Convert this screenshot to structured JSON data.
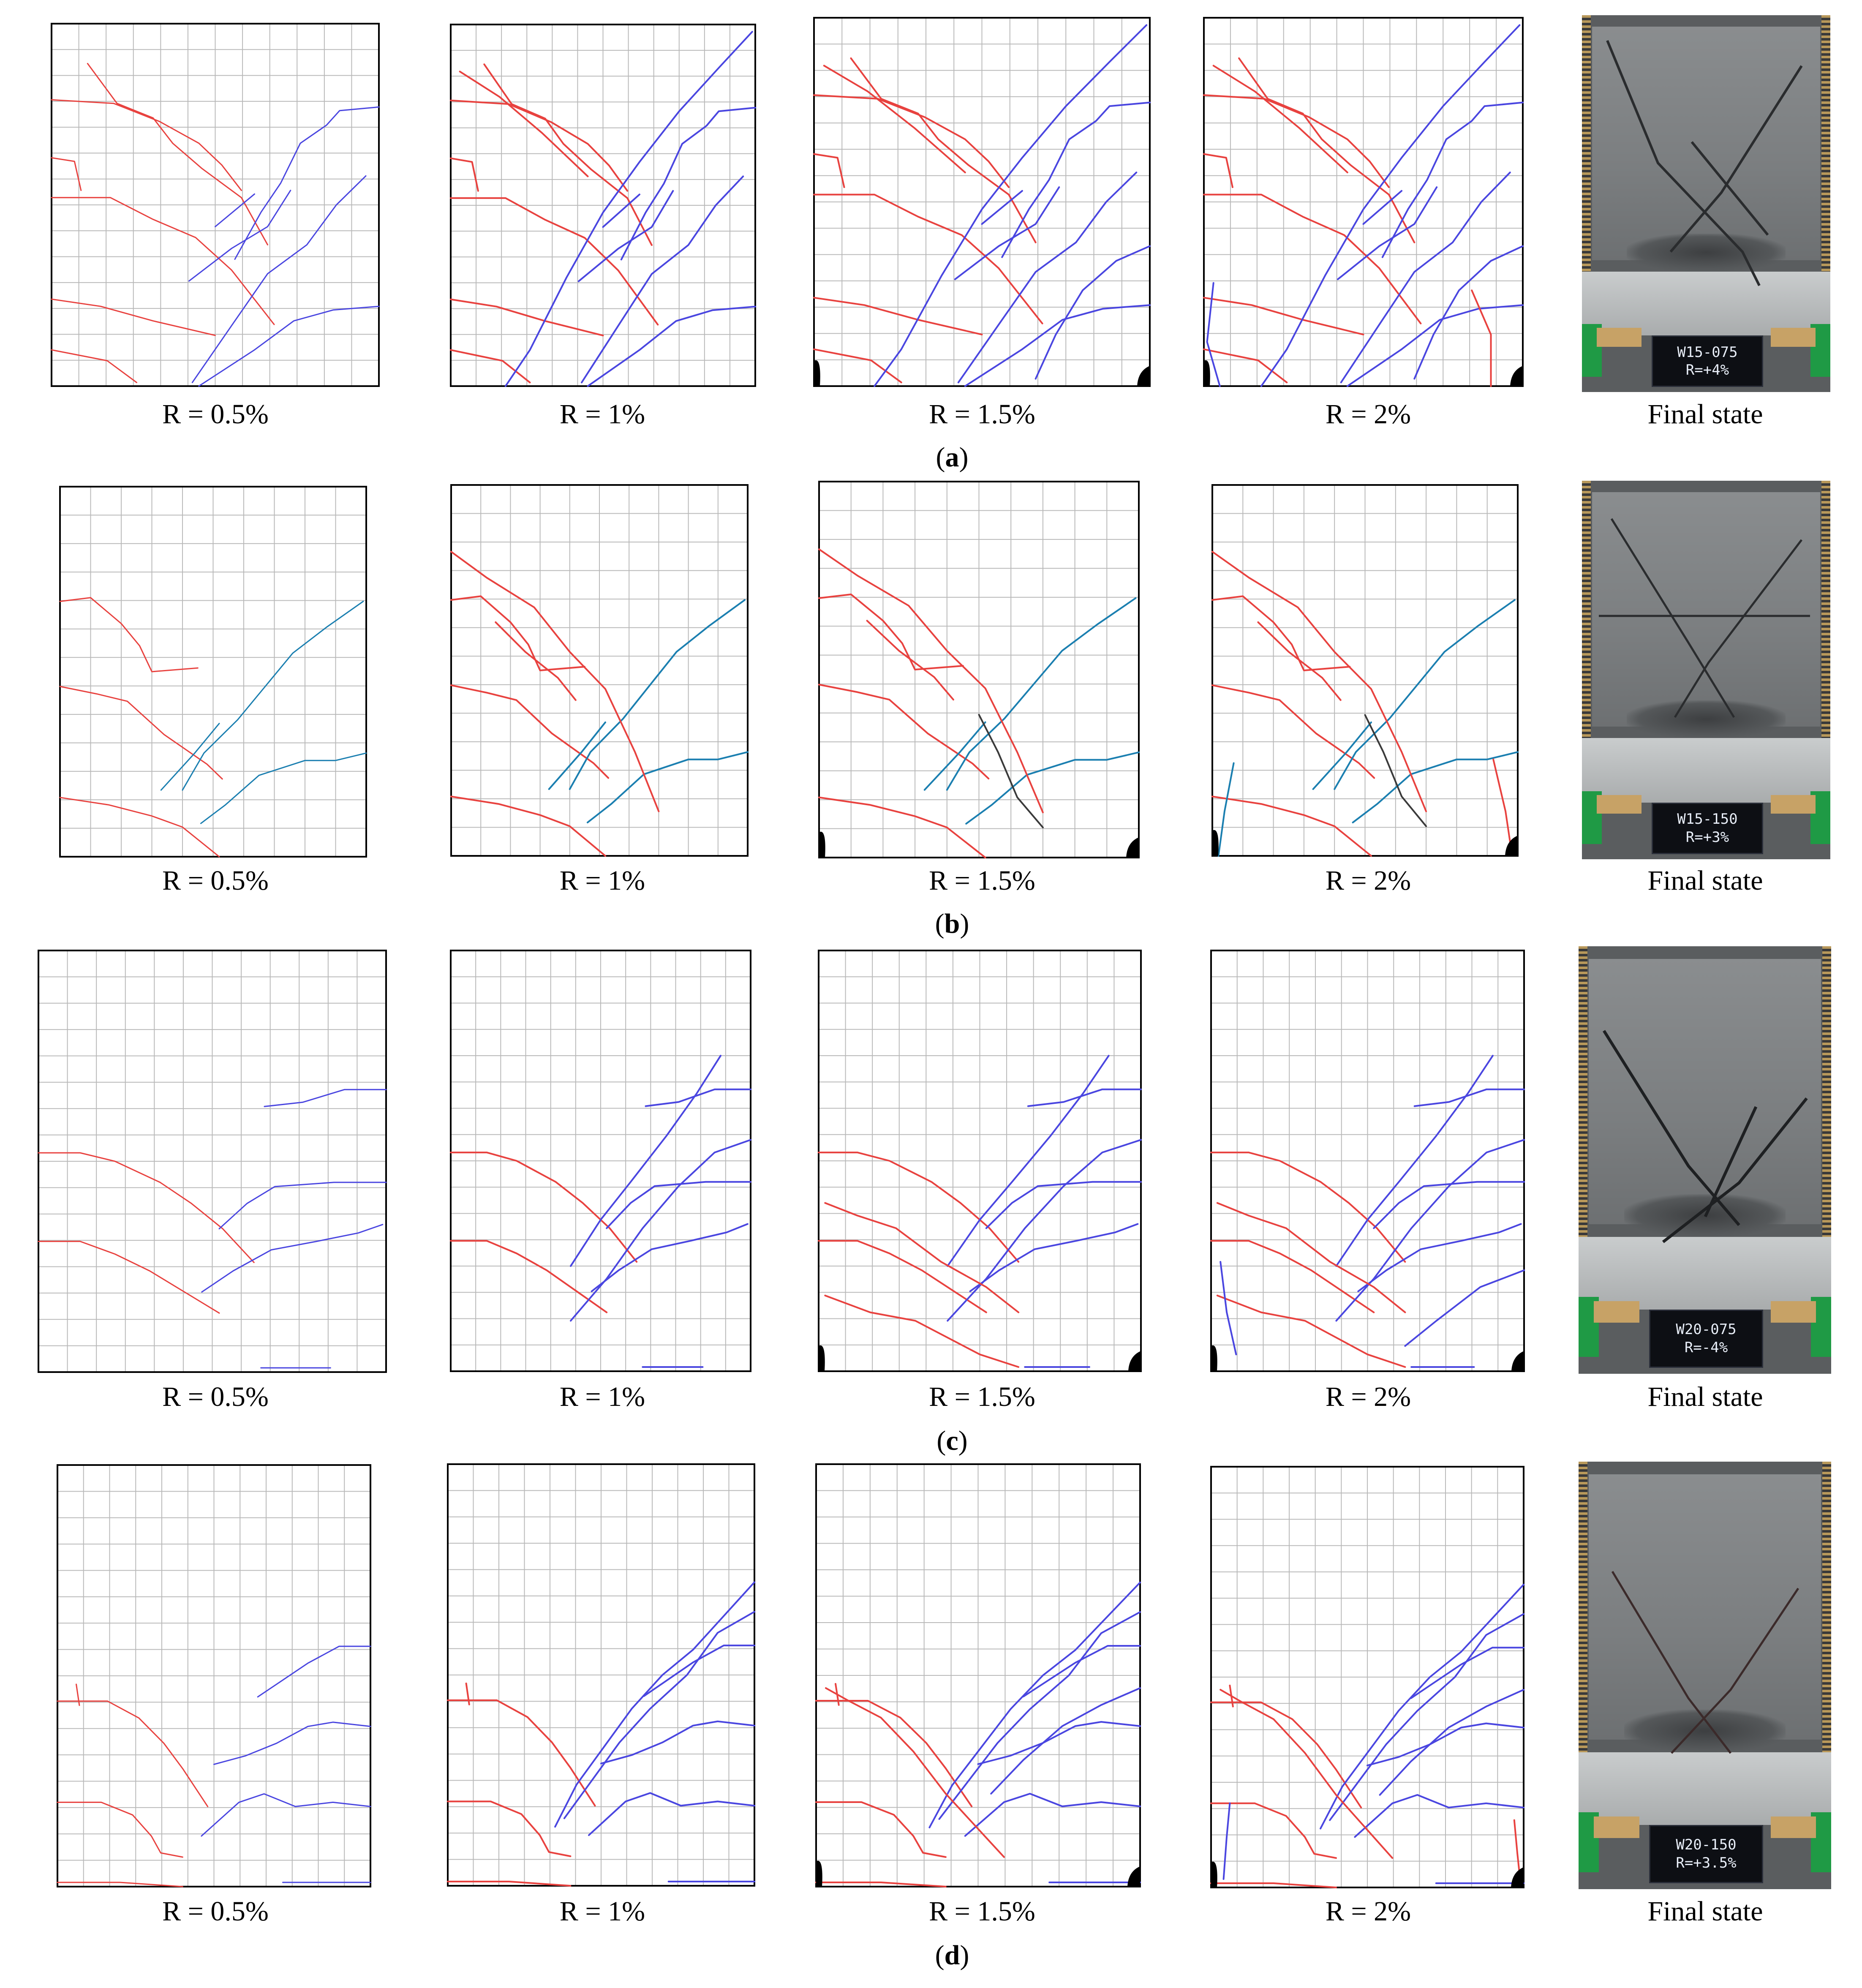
{
  "colors": {
    "grid": "#b9b9b9",
    "frame": "#000000",
    "crack_positive": "#e8423f",
    "crack_negative": "#4a46e0",
    "crack_teal": "#1b7fb0",
    "crack_dark": "#3a3a3a",
    "crush": "#000000"
  },
  "rows": [
    {
      "label_open": "(",
      "label_letter": "a",
      "label_close": ")",
      "captions": [
        "R = 0.5%",
        "R = 1%",
        "R = 1.5%",
        "R = 2%",
        "Final state"
      ],
      "photo": {
        "specimen": "W15-075",
        "drift": "R=+4%"
      }
    },
    {
      "label_open": "(",
      "label_letter": "b",
      "label_close": ")",
      "captions": [
        "R = 0.5%",
        "R = 1%",
        "R = 1.5%",
        "R = 2%",
        "Final state"
      ],
      "photo": {
        "specimen": "W15-150",
        "drift": "R=+3%"
      }
    },
    {
      "label_open": "(",
      "label_letter": "c",
      "label_close": ")",
      "captions": [
        "R = 0.5%",
        "R = 1%",
        "R = 1.5%",
        "R = 2%",
        "Final state"
      ],
      "photo": {
        "specimen": "W20-075",
        "drift": "R=-4%"
      }
    },
    {
      "label_open": "(",
      "label_letter": "d",
      "label_close": ")",
      "captions": [
        "R = 0.5%",
        "R = 1%",
        "R = 1.5%",
        "R = 2%",
        "Final state"
      ],
      "photo": {
        "specimen": "W20-150",
        "drift": "R=+3.5%"
      }
    }
  ]
}
